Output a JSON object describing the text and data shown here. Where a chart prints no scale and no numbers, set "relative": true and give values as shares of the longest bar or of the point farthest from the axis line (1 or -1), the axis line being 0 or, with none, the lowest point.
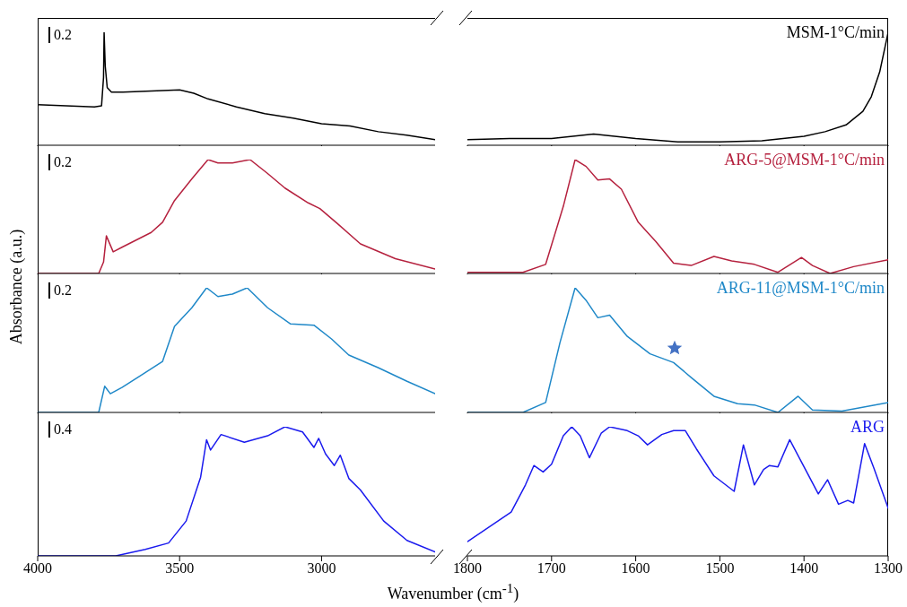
{
  "chart_data": [
    {
      "type": "line",
      "relative": true,
      "xlim": [
        4000,
        2600
      ],
      "xticks": [
        4000,
        3500,
        3000
      ],
      "tick_labels": false,
      "annotations": [
        "0.2"
      ],
      "x": [
        4000,
        3900,
        3800,
        3775,
        3768,
        3766,
        3762,
        3755,
        3740,
        3700,
        3600,
        3500,
        3450,
        3400,
        3300,
        3200,
        3100,
        3000,
        2900,
        2800,
        2700,
        2600
      ],
      "series": [
        {
          "color": "#000000",
          "values": [
            0.36,
            0.35,
            0.34,
            0.35,
            0.6,
            1,
            0.7,
            0.51,
            0.47,
            0.47,
            0.48,
            0.49,
            0.46,
            0.41,
            0.34,
            0.28,
            0.24,
            0.19,
            0.17,
            0.12,
            0.09,
            0.05
          ]
        }
      ]
    },
    {
      "type": "line",
      "relative": true,
      "xlim": [
        1800,
        1300
      ],
      "xticks": [
        1800,
        1700,
        1600,
        1500,
        1400,
        1300
      ],
      "tick_labels": false,
      "legend": "top right",
      "x": [
        1800,
        1750,
        1700,
        1650,
        1600,
        1550,
        1500,
        1450,
        1400,
        1375,
        1350,
        1330,
        1320,
        1310,
        1300
      ],
      "series": [
        {
          "name": "MSM-1°C/min",
          "color": "#000000",
          "values": [
            0.05,
            0.06,
            0.06,
            0.1,
            0.06,
            0.03,
            0.03,
            0.04,
            0.08,
            0.12,
            0.18,
            0.3,
            0.43,
            0.65,
            1
          ]
        }
      ]
    },
    {
      "type": "line",
      "relative": true,
      "xlim": [
        4000,
        2600
      ],
      "xticks": [
        4000,
        3500,
        3000
      ],
      "tick_labels": false,
      "annotations": [
        "0.2"
      ],
      "x": [
        4000,
        3785,
        3768,
        3758,
        3734,
        3703,
        3600,
        3560,
        3518,
        3457,
        3400,
        3365,
        3314,
        3252,
        3191,
        3129,
        3047,
        3006,
        2945,
        2863,
        2740,
        2600
      ],
      "series": [
        {
          "color": "#b5213e",
          "values": [
            0,
            0,
            0.1,
            0.33,
            0.19,
            0.23,
            0.36,
            0.45,
            0.64,
            0.83,
            1,
            0.97,
            0.97,
            1,
            0.88,
            0.75,
            0.62,
            0.57,
            0.44,
            0.26,
            0.13,
            0.04
          ]
        }
      ]
    },
    {
      "type": "line",
      "relative": true,
      "xlim": [
        1800,
        1300
      ],
      "xticks": [
        1800,
        1700,
        1600,
        1500,
        1400,
        1300
      ],
      "tick_labels": false,
      "legend": "top right",
      "x": [
        1800,
        1734,
        1707,
        1686,
        1672,
        1659,
        1645,
        1631,
        1617,
        1597,
        1576,
        1555,
        1534,
        1507,
        1486,
        1459,
        1431,
        1403,
        1390,
        1369,
        1341,
        1300
      ],
      "series": [
        {
          "name": "ARG-5@MSM-1°C/min",
          "color": "#b5213e",
          "values": [
            0.01,
            0.01,
            0.08,
            0.59,
            1,
            0.94,
            0.82,
            0.83,
            0.74,
            0.45,
            0.28,
            0.09,
            0.07,
            0.15,
            0.11,
            0.08,
            0.01,
            0.14,
            0.07,
            0,
            0.06,
            0.12
          ]
        }
      ]
    },
    {
      "type": "line",
      "relative": true,
      "xlim": [
        4000,
        2600
      ],
      "xticks": [
        4000,
        3500,
        3000
      ],
      "tick_labels": false,
      "ylabel": "Absorbance (a.u.)",
      "annotations": [
        "0.2"
      ],
      "x": [
        4000,
        3785,
        3764,
        3744,
        3703,
        3641,
        3560,
        3518,
        3457,
        3405,
        3365,
        3314,
        3262,
        3190,
        3109,
        3027,
        2965,
        2904,
        2801,
        2699,
        2600
      ],
      "series": [
        {
          "color": "#1f88c8",
          "values": [
            0,
            0,
            0.21,
            0.15,
            0.2,
            0.29,
            0.41,
            0.69,
            0.84,
            1,
            0.93,
            0.95,
            1,
            0.84,
            0.71,
            0.7,
            0.59,
            0.46,
            0.36,
            0.25,
            0.15
          ]
        }
      ]
    },
    {
      "type": "line",
      "relative": true,
      "xlim": [
        1800,
        1300
      ],
      "xticks": [
        1800,
        1700,
        1600,
        1500,
        1400,
        1300
      ],
      "tick_labels": false,
      "legend": "top right",
      "x": [
        1800,
        1734,
        1707,
        1690,
        1672,
        1659,
        1645,
        1631,
        1610,
        1583,
        1555,
        1534,
        1507,
        1479,
        1459,
        1431,
        1407,
        1390,
        1355,
        1300
      ],
      "series": [
        {
          "name": "ARG-11@MSM-1°C/min",
          "color": "#1f88c8",
          "values": [
            0,
            0,
            0.08,
            0.56,
            1,
            0.9,
            0.76,
            0.78,
            0.61,
            0.47,
            0.4,
            0.28,
            0.13,
            0.07,
            0.06,
            0,
            0.13,
            0.02,
            0.01,
            0.08
          ]
        }
      ]
    },
    {
      "type": "line",
      "relative": true,
      "xlim": [
        4000,
        2600
      ],
      "xticks": [
        4000,
        3500,
        3000
      ],
      "tick_labels": "x",
      "xlabel": "Wavenumber (cm$^{-1}$)",
      "annotations": [
        "0.4"
      ],
      "x": [
        4000,
        3725,
        3621,
        3539,
        3477,
        3426,
        3405,
        3391,
        3354,
        3272,
        3190,
        3129,
        3067,
        3027,
        3010,
        2986,
        2955,
        2934,
        2904,
        2863,
        2781,
        2699,
        2600
      ],
      "series": [
        {
          "color": "#1a1aee",
          "values": [
            0,
            0,
            0.05,
            0.1,
            0.27,
            0.61,
            0.9,
            0.82,
            0.94,
            0.88,
            0.93,
            1,
            0.96,
            0.84,
            0.91,
            0.79,
            0.7,
            0.78,
            0.6,
            0.51,
            0.27,
            0.12,
            0.03
          ]
        }
      ]
    },
    {
      "type": "line",
      "relative": true,
      "xlim": [
        1800,
        1300
      ],
      "xticks": [
        1800,
        1700,
        1600,
        1500,
        1400,
        1300
      ],
      "tick_labels": "x",
      "legend": "top right",
      "x": [
        1800,
        1748,
        1731,
        1721,
        1710,
        1700,
        1686,
        1676,
        1666,
        1655,
        1641,
        1631,
        1610,
        1597,
        1586,
        1569,
        1555,
        1541,
        1528,
        1507,
        1483,
        1472,
        1459,
        1448,
        1441,
        1431,
        1417,
        1400,
        1383,
        1372,
        1359,
        1348,
        1341,
        1328,
        1317,
        1300
      ],
      "series": [
        {
          "name": "ARG",
          "color": "#1a1aee",
          "values": [
            0.11,
            0.34,
            0.55,
            0.7,
            0.65,
            0.71,
            0.93,
            1,
            0.93,
            0.76,
            0.95,
            1,
            0.97,
            0.93,
            0.86,
            0.94,
            0.97,
            0.97,
            0.83,
            0.62,
            0.5,
            0.86,
            0.55,
            0.67,
            0.7,
            0.69,
            0.9,
            0.69,
            0.48,
            0.59,
            0.4,
            0.43,
            0.41,
            0.87,
            0.68,
            0.37
          ]
        }
      ]
    }
  ]
}
